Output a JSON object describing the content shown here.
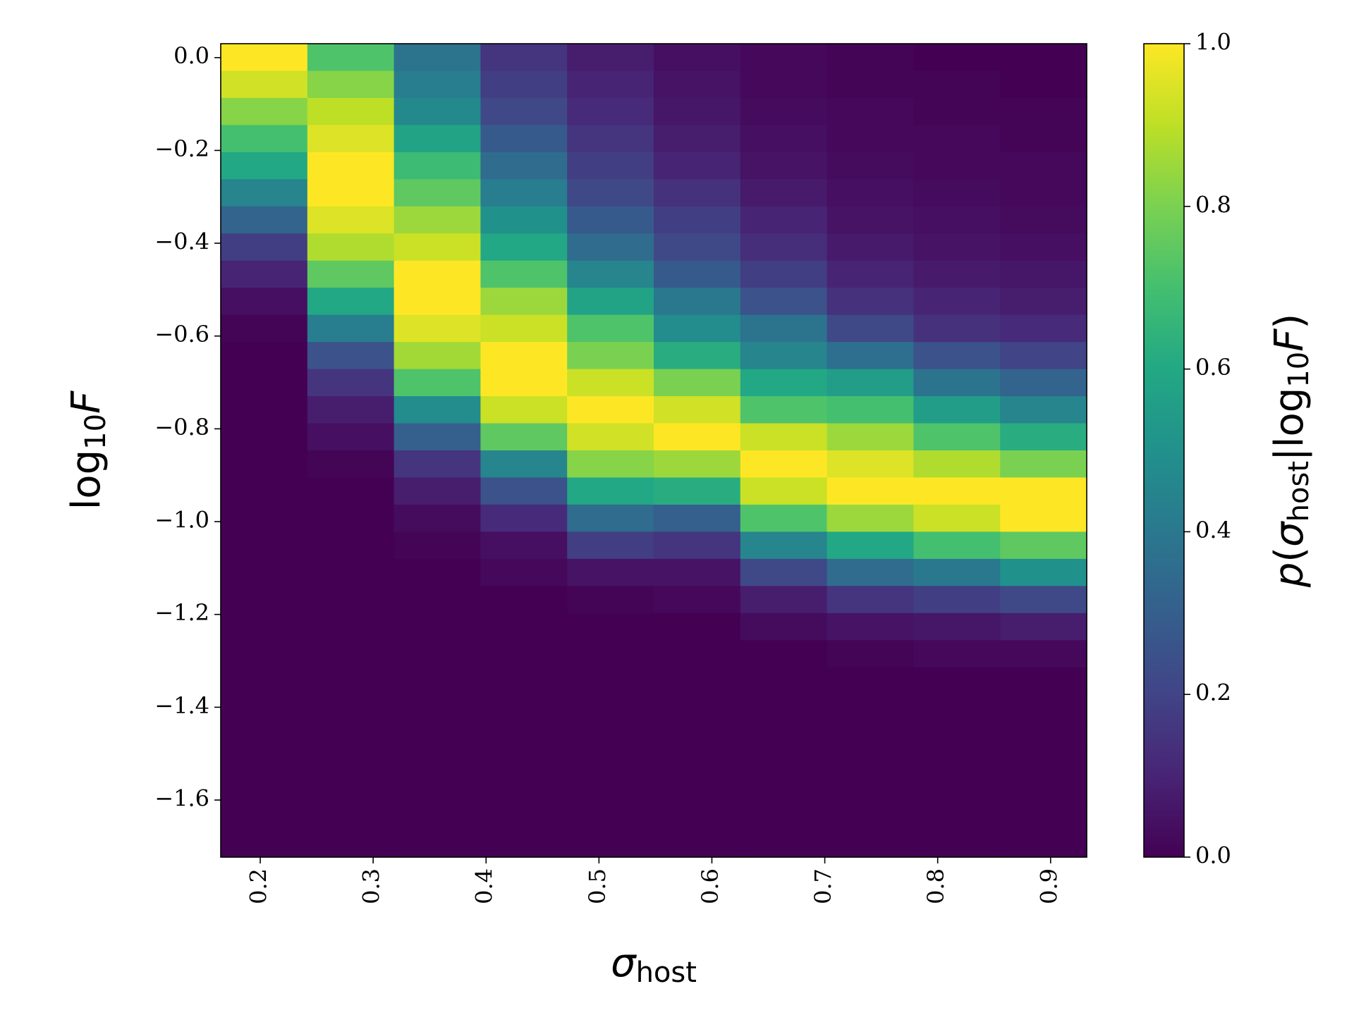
{
  "chart_data": {
    "type": "heatmap",
    "colormap": "viridis",
    "xlabel": [
      {
        "text": "σ",
        "italic": true
      },
      {
        "text": "host",
        "sub": true
      }
    ],
    "ylabel": [
      {
        "text": "log"
      },
      {
        "text": "10",
        "sub": true
      },
      {
        "text": "F",
        "italic": true
      }
    ],
    "colorbar_label": [
      {
        "text": "p",
        "italic": true
      },
      {
        "text": "("
      },
      {
        "text": "σ",
        "italic": true
      },
      {
        "text": "host",
        "sub": true
      },
      {
        "text": "|log"
      },
      {
        "text": "10",
        "sub": true
      },
      {
        "text": "F",
        "italic": true
      },
      {
        "text": ")"
      }
    ],
    "xlim": [
      0.165,
      0.932
    ],
    "ylim": [
      -1.723,
      0.03
    ],
    "xticks": [
      0.2,
      0.3,
      0.4,
      0.5,
      0.6,
      0.7,
      0.8,
      0.9
    ],
    "yticks": [
      {
        "value": 0,
        "label": "0.0"
      },
      {
        "value": -0.2,
        "label": "−0.2"
      },
      {
        "value": -0.4,
        "label": "−0.4"
      },
      {
        "value": -0.6,
        "label": "−0.6"
      },
      {
        "value": -0.8,
        "label": "−0.8"
      },
      {
        "value": -1.0,
        "label": "−1.0"
      },
      {
        "value": -1.2,
        "label": "−1.2"
      },
      {
        "value": -1.4,
        "label": "−1.4"
      },
      {
        "value": -1.6,
        "label": "−1.6"
      }
    ],
    "clim": [
      0,
      1
    ],
    "cticks": [
      {
        "value": 0,
        "label": "0.0"
      },
      0.2,
      0.4,
      0.6,
      0.8,
      {
        "value": 1,
        "label": "1.0"
      }
    ],
    "values": [
      [
        1.0,
        0.72,
        0.38,
        0.15,
        0.08,
        0.04,
        0.02,
        0.01,
        0,
        0
      ],
      [
        0.93,
        0.82,
        0.42,
        0.18,
        0.1,
        0.05,
        0.02,
        0.01,
        0.01,
        0
      ],
      [
        0.82,
        0.9,
        0.47,
        0.22,
        0.12,
        0.06,
        0.03,
        0.02,
        0.01,
        0.01
      ],
      [
        0.7,
        0.95,
        0.58,
        0.28,
        0.15,
        0.08,
        0.04,
        0.02,
        0.02,
        0.01
      ],
      [
        0.6,
        1.0,
        0.68,
        0.35,
        0.18,
        0.1,
        0.05,
        0.03,
        0.02,
        0.02
      ],
      [
        0.45,
        1.0,
        0.75,
        0.42,
        0.22,
        0.14,
        0.07,
        0.04,
        0.03,
        0.02
      ],
      [
        0.32,
        0.95,
        0.85,
        0.5,
        0.28,
        0.18,
        0.1,
        0.05,
        0.04,
        0.03
      ],
      [
        0.18,
        0.88,
        0.92,
        0.6,
        0.35,
        0.22,
        0.13,
        0.07,
        0.05,
        0.04
      ],
      [
        0.1,
        0.75,
        1.0,
        0.72,
        0.45,
        0.28,
        0.18,
        0.1,
        0.07,
        0.06
      ],
      [
        0.04,
        0.6,
        1.0,
        0.85,
        0.58,
        0.4,
        0.25,
        0.14,
        0.1,
        0.08
      ],
      [
        0.01,
        0.42,
        0.95,
        0.92,
        0.72,
        0.48,
        0.38,
        0.22,
        0.14,
        0.12
      ],
      [
        0,
        0.25,
        0.86,
        1.0,
        0.8,
        0.62,
        0.45,
        0.36,
        0.25,
        0.2
      ],
      [
        0,
        0.15,
        0.72,
        1.0,
        0.92,
        0.8,
        0.6,
        0.55,
        0.38,
        0.32
      ],
      [
        0,
        0.08,
        0.48,
        0.92,
        1.0,
        0.93,
        0.72,
        0.7,
        0.55,
        0.45
      ],
      [
        0,
        0.04,
        0.3,
        0.75,
        0.93,
        1.0,
        0.92,
        0.85,
        0.72,
        0.62
      ],
      [
        0,
        0.01,
        0.15,
        0.45,
        0.82,
        0.85,
        1.0,
        0.95,
        0.88,
        0.8
      ],
      [
        0,
        0,
        0.08,
        0.25,
        0.6,
        0.62,
        0.92,
        1.0,
        1.0,
        1.0
      ],
      [
        0,
        0,
        0.03,
        0.12,
        0.35,
        0.3,
        0.72,
        0.85,
        0.92,
        1.0
      ],
      [
        0,
        0,
        0.01,
        0.04,
        0.18,
        0.15,
        0.45,
        0.6,
        0.7,
        0.75
      ],
      [
        0,
        0,
        0,
        0.02,
        0.05,
        0.05,
        0.22,
        0.35,
        0.4,
        0.5
      ],
      [
        0,
        0,
        0,
        0,
        0.01,
        0.02,
        0.08,
        0.15,
        0.18,
        0.22
      ],
      [
        0,
        0,
        0,
        0,
        0,
        0,
        0.03,
        0.05,
        0.06,
        0.08
      ],
      [
        0,
        0,
        0,
        0,
        0,
        0,
        0,
        0.01,
        0.02,
        0.02
      ],
      [
        0,
        0,
        0,
        0,
        0,
        0,
        0,
        0,
        0,
        0
      ],
      [
        0,
        0,
        0,
        0,
        0,
        0,
        0,
        0,
        0,
        0
      ],
      [
        0,
        0,
        0,
        0,
        0,
        0,
        0,
        0,
        0,
        0
      ],
      [
        0,
        0,
        0,
        0,
        0,
        0,
        0,
        0,
        0,
        0
      ],
      [
        0,
        0,
        0,
        0,
        0,
        0,
        0,
        0,
        0,
        0
      ],
      [
        0,
        0,
        0,
        0,
        0,
        0,
        0,
        0,
        0,
        0
      ],
      [
        0,
        0,
        0,
        0,
        0,
        0,
        0,
        0,
        0,
        0
      ]
    ]
  }
}
